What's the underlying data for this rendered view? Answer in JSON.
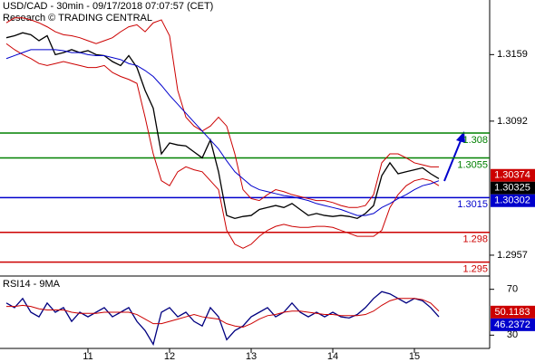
{
  "chart_data": [
    {
      "type": "line",
      "title": "USD/CAD - 30min - 09/17/2018 07:07:57 (CET)",
      "subtitle": "Research © TRADING CENTRAL",
      "categories": [
        null,
        null,
        null,
        null,
        null,
        null,
        null,
        null,
        null,
        null,
        "11",
        null,
        null,
        null,
        null,
        null,
        null,
        null,
        null,
        null,
        "12",
        null,
        null,
        null,
        null,
        null,
        null,
        null,
        null,
        null,
        "13",
        null,
        null,
        null,
        null,
        null,
        null,
        null,
        null,
        null,
        "14",
        null,
        null,
        null,
        null,
        null,
        null,
        null,
        null,
        null,
        "15",
        null,
        null,
        null
      ],
      "series": [
        {
          "color": "#000000",
          "values": [
            1.3176,
            1.3178,
            1.3181,
            1.3179,
            1.3173,
            1.3178,
            1.3159,
            1.3161,
            1.3164,
            1.3161,
            1.3163,
            1.3159,
            1.3158,
            1.3152,
            1.3148,
            1.3158,
            1.3146,
            1.3123,
            1.3105,
            1.3059,
            1.307,
            1.3068,
            1.3067,
            1.3061,
            1.3055,
            1.3073,
            1.3041,
            1.2997,
            1.2994,
            1.2996,
            1.2997,
            1.3003,
            1.3005,
            1.3007,
            1.3005,
            1.3009,
            1.3003,
            1.2997,
            1.2999,
            1.2997,
            1.2996,
            1.2997,
            1.2996,
            1.2994,
            1.2999,
            1.3007,
            1.3037,
            1.305,
            1.3039,
            1.3041,
            1.3043,
            1.3045,
            1.3039,
            1.3034
          ]
        },
        {
          "color": "#cc0000",
          "values": [
            1.3191,
            1.3196,
            1.3196,
            1.3194,
            1.3191,
            1.3187,
            1.3182,
            1.3179,
            1.3178,
            1.3176,
            1.3173,
            1.317,
            1.3173,
            1.3176,
            1.3182,
            1.3187,
            1.3189,
            1.3182,
            1.3191,
            1.3194,
            1.3178,
            1.3123,
            1.3096,
            1.3087,
            1.3082,
            1.3087,
            1.3096,
            1.3087,
            1.3059,
            1.3023,
            1.3014,
            1.3012,
            1.3018,
            1.3023,
            1.3021,
            1.3018,
            1.3016,
            1.3014,
            1.3012,
            1.3012,
            1.301,
            1.3007,
            1.3005,
            1.3005,
            1.3007,
            1.3018,
            1.305,
            1.3059,
            1.3059,
            1.3055,
            1.305,
            1.3048,
            1.3046,
            1.3046
          ]
        },
        {
          "color": "#cc0000",
          "values": [
            1.317,
            1.3164,
            1.3159,
            1.3155,
            1.315,
            1.3148,
            1.315,
            1.3152,
            1.315,
            1.3148,
            1.3146,
            1.3146,
            1.3148,
            1.3141,
            1.3137,
            1.3134,
            1.313,
            1.3096,
            1.3059,
            1.3032,
            1.3027,
            1.3041,
            1.3046,
            1.3043,
            1.3041,
            1.3032,
            1.3023,
            1.2982,
            1.2968,
            1.2964,
            1.2968,
            1.2976,
            1.2982,
            1.2986,
            1.2988,
            1.2986,
            1.2985,
            1.2985,
            1.2986,
            1.2986,
            1.2985,
            1.2982,
            1.2979,
            1.2976,
            1.2976,
            1.2976,
            1.2982,
            1.3005,
            1.3018,
            1.3027,
            1.3032,
            1.3034,
            1.3032,
            1.3027
          ]
        },
        {
          "color": "#0000cc",
          "values": [
            1.3155,
            1.3158,
            1.3161,
            1.3164,
            1.3164,
            1.3164,
            1.3164,
            1.3163,
            1.3161,
            1.3161,
            1.3159,
            1.3158,
            1.3158,
            1.3156,
            1.3154,
            1.315,
            1.3148,
            1.3143,
            1.3137,
            1.3128,
            1.3118,
            1.3109,
            1.31,
            1.3091,
            1.3082,
            1.3073,
            1.3064,
            1.3052,
            1.3041,
            1.3034,
            1.3027,
            1.3023,
            1.3021,
            1.3019,
            1.3017,
            1.3016,
            1.3014,
            1.3012,
            1.3009,
            1.3007,
            1.3005,
            1.3003,
            1.3,
            1.2997,
            1.2997,
            1.2999,
            1.3005,
            1.3009,
            1.3014,
            1.3018,
            1.3023,
            1.3027,
            1.3029,
            1.3032
          ]
        }
      ],
      "ylim": [
        1.2936,
        1.3214
      ],
      "yticks": [
        1.2957,
        1.3092,
        1.3159
      ],
      "levels": [
        {
          "value": 1.308,
          "color": "#008000"
        },
        {
          "value": 1.3055,
          "color": "#008000"
        },
        {
          "value": 1.3015,
          "color": "#0000cc"
        },
        {
          "value": 1.298,
          "color": "#cc0000"
        },
        {
          "value": 1.295,
          "color": "#cc0000"
        }
      ],
      "tags": [
        {
          "value": 1.30374,
          "color": "#cc0000"
        },
        {
          "value": 1.30325,
          "color": "#000000"
        },
        {
          "value": 1.30302,
          "color": "#0000cc"
        }
      ]
    },
    {
      "type": "line",
      "title": "RSI14 - 9MA",
      "series": [
        {
          "color": "#000080",
          "values": [
            58,
            54,
            62,
            50,
            46,
            58,
            50,
            54,
            42,
            50,
            46,
            50,
            54,
            46,
            50,
            54,
            42,
            34,
            22,
            50,
            54,
            46,
            50,
            42,
            38,
            54,
            46,
            26,
            34,
            38,
            46,
            50,
            54,
            46,
            50,
            58,
            50,
            46,
            50,
            46,
            50,
            46,
            45,
            48,
            54,
            62,
            68,
            66,
            62,
            58,
            62,
            60,
            54,
            46
          ]
        },
        {
          "color": "#cc0000",
          "values": [
            55,
            55,
            56,
            55,
            53,
            52,
            52,
            52,
            50,
            49,
            49,
            49,
            50,
            50,
            50,
            50,
            48,
            44,
            40,
            40,
            42,
            44,
            46,
            48,
            46,
            45,
            44,
            40,
            38,
            37,
            40,
            44,
            47,
            48,
            50,
            51,
            51,
            50,
            49,
            48,
            48,
            47,
            47,
            47,
            48,
            51,
            56,
            60,
            62,
            62,
            62,
            61,
            58,
            51
          ]
        }
      ],
      "ylim": [
        20,
        80
      ],
      "yticks": [
        30,
        70
      ],
      "tags": [
        {
          "value": 50.1183,
          "color": "#cc0000"
        },
        {
          "value": 46.2372,
          "color": "#0000cc"
        }
      ]
    }
  ]
}
